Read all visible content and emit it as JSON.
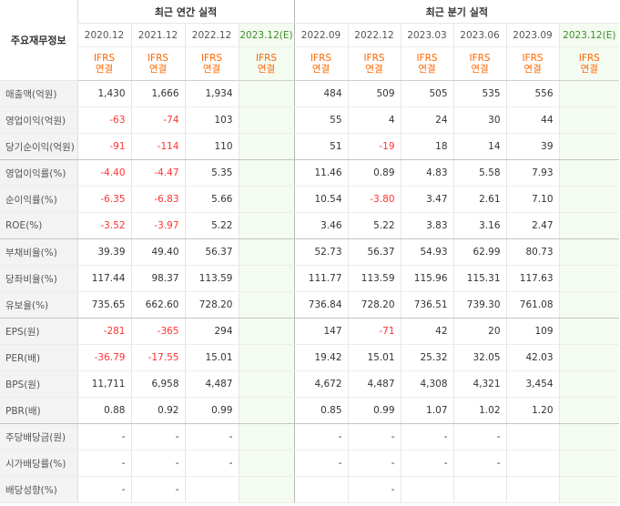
{
  "header": {
    "row_label": "주요재무정보",
    "annual_title": "최근 연간 실적",
    "quarter_title": "최근 분기 실적",
    "periods": [
      "2020.12",
      "2021.12",
      "2022.12",
      "2023.12(E)",
      "2022.09",
      "2022.12",
      "2023.03",
      "2023.06",
      "2023.09",
      "2023.12(E)"
    ],
    "std_top": [
      "IFRS",
      "IFRS",
      "IFRS",
      "IFRS",
      "IFRS",
      "IFRS",
      "IFRS",
      "IFRS",
      "IFRS",
      "IFRS"
    ],
    "std_bottom": [
      "연결",
      "연결",
      "연결",
      "연결",
      "연결",
      "연결",
      "연결",
      "연결",
      "연결",
      "연결"
    ]
  },
  "rows": [
    {
      "label": "매출액(억원)",
      "values": [
        "1,430",
        "1,666",
        "1,934",
        "",
        "484",
        "509",
        "505",
        "535",
        "556",
        ""
      ]
    },
    {
      "label": "영업이익(억원)",
      "values": [
        "-63",
        "-74",
        "103",
        "",
        "55",
        "4",
        "24",
        "30",
        "44",
        ""
      ]
    },
    {
      "label": "당기순이익(억원)",
      "values": [
        "-91",
        "-114",
        "110",
        "",
        "51",
        "-19",
        "18",
        "14",
        "39",
        ""
      ]
    },
    {
      "label": "영업이익률(%)",
      "values": [
        "-4.40",
        "-4.47",
        "5.35",
        "",
        "11.46",
        "0.89",
        "4.83",
        "5.58",
        "7.93",
        ""
      ]
    },
    {
      "label": "순이익률(%)",
      "values": [
        "-6.35",
        "-6.83",
        "5.66",
        "",
        "10.54",
        "-3.80",
        "3.47",
        "2.61",
        "7.10",
        ""
      ]
    },
    {
      "label": "ROE(%)",
      "values": [
        "-3.52",
        "-3.97",
        "5.22",
        "",
        "3.46",
        "5.22",
        "3.83",
        "3.16",
        "2.47",
        ""
      ]
    },
    {
      "label": "부채비율(%)",
      "values": [
        "39.39",
        "49.40",
        "56.37",
        "",
        "52.73",
        "56.37",
        "54.93",
        "62.99",
        "80.73",
        ""
      ]
    },
    {
      "label": "당좌비율(%)",
      "values": [
        "117.44",
        "98.37",
        "113.59",
        "",
        "111.77",
        "113.59",
        "115.96",
        "115.31",
        "117.63",
        ""
      ]
    },
    {
      "label": "유보율(%)",
      "values": [
        "735.65",
        "662.60",
        "728.20",
        "",
        "736.84",
        "728.20",
        "736.51",
        "739.30",
        "761.08",
        ""
      ]
    },
    {
      "label": "EPS(원)",
      "values": [
        "-281",
        "-365",
        "294",
        "",
        "147",
        "-71",
        "42",
        "20",
        "109",
        ""
      ]
    },
    {
      "label": "PER(배)",
      "values": [
        "-36.79",
        "-17.55",
        "15.01",
        "",
        "19.42",
        "15.01",
        "25.32",
        "32.05",
        "42.03",
        ""
      ]
    },
    {
      "label": "BPS(원)",
      "values": [
        "11,711",
        "6,958",
        "4,487",
        "",
        "4,672",
        "4,487",
        "4,308",
        "4,321",
        "3,454",
        ""
      ]
    },
    {
      "label": "PBR(배)",
      "values": [
        "0.88",
        "0.92",
        "0.99",
        "",
        "0.85",
        "0.99",
        "1.07",
        "1.02",
        "1.20",
        ""
      ]
    },
    {
      "label": "주당배당금(원)",
      "values": [
        "-",
        "-",
        "-",
        "",
        "-",
        "-",
        "-",
        "-",
        "",
        ""
      ]
    },
    {
      "label": "시가배당률(%)",
      "values": [
        "-",
        "-",
        "-",
        "",
        "-",
        "-",
        "-",
        "-",
        "",
        ""
      ]
    },
    {
      "label": "배당성향(%)",
      "values": [
        "-",
        "-",
        "",
        "",
        "",
        "-",
        "",
        "",
        "",
        ""
      ]
    }
  ],
  "colors": {
    "negative": "#ff3333",
    "standard": "#ff6600",
    "estimate_bg": "#f4fbf0",
    "label_bg": "#f3f3f3"
  }
}
